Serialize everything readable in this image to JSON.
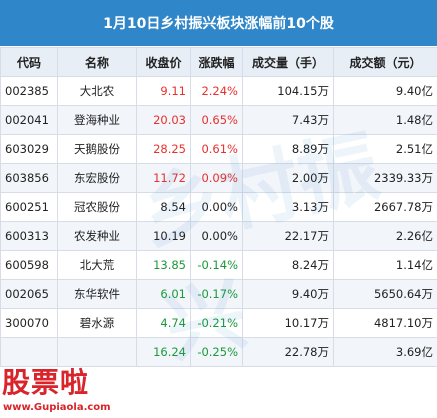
{
  "chart_data": {
    "type": "table",
    "title": "1月10日乡村振兴板块涨幅前10个股",
    "columns": [
      "代码",
      "名称",
      "收盘价",
      "涨跌幅",
      "成交量（手）",
      "成交额（元）"
    ],
    "rows": [
      {
        "code": "002385",
        "name": "大北农",
        "price": "9.11",
        "change": "2.24%",
        "volume": "104.15万",
        "amount": "9.40亿",
        "dir": "up"
      },
      {
        "code": "002041",
        "name": "登海种业",
        "price": "20.03",
        "change": "0.65%",
        "volume": "7.43万",
        "amount": "1.48亿",
        "dir": "up"
      },
      {
        "code": "603029",
        "name": "天鹅股份",
        "price": "28.25",
        "change": "0.61%",
        "volume": "8.89万",
        "amount": "2.51亿",
        "dir": "up"
      },
      {
        "code": "603856",
        "name": "东宏股份",
        "price": "11.72",
        "change": "0.09%",
        "volume": "2.00万",
        "amount": "2339.33万",
        "dir": "up"
      },
      {
        "code": "600251",
        "name": "冠农股份",
        "price": "8.54",
        "change": "0.00%",
        "volume": "3.13万",
        "amount": "2667.78万",
        "dir": "flat"
      },
      {
        "code": "600313",
        "name": "农发种业",
        "price": "10.19",
        "change": "0.00%",
        "volume": "22.17万",
        "amount": "2.26亿",
        "dir": "flat"
      },
      {
        "code": "600598",
        "name": "北大荒",
        "price": "13.85",
        "change": "-0.14%",
        "volume": "8.24万",
        "amount": "1.14亿",
        "dir": "down"
      },
      {
        "code": "002065",
        "name": "东华软件",
        "price": "6.01",
        "change": "-0.17%",
        "volume": "9.40万",
        "amount": "5650.64万",
        "dir": "down"
      },
      {
        "code": "300070",
        "name": "碧水源",
        "price": "4.74",
        "change": "-0.21%",
        "volume": "10.17万",
        "amount": "4817.10万",
        "dir": "down"
      },
      {
        "code": "",
        "name": "",
        "price": "16.24",
        "change": "-0.25%",
        "volume": "22.78万",
        "amount": "3.69亿",
        "dir": "down"
      }
    ],
    "colors": {
      "header": "#2f86c8",
      "up": "#e8312d",
      "down": "#1a9a3a"
    }
  },
  "logo": {
    "main": "股票啦",
    "sub": "www.Gupiaola.com"
  }
}
